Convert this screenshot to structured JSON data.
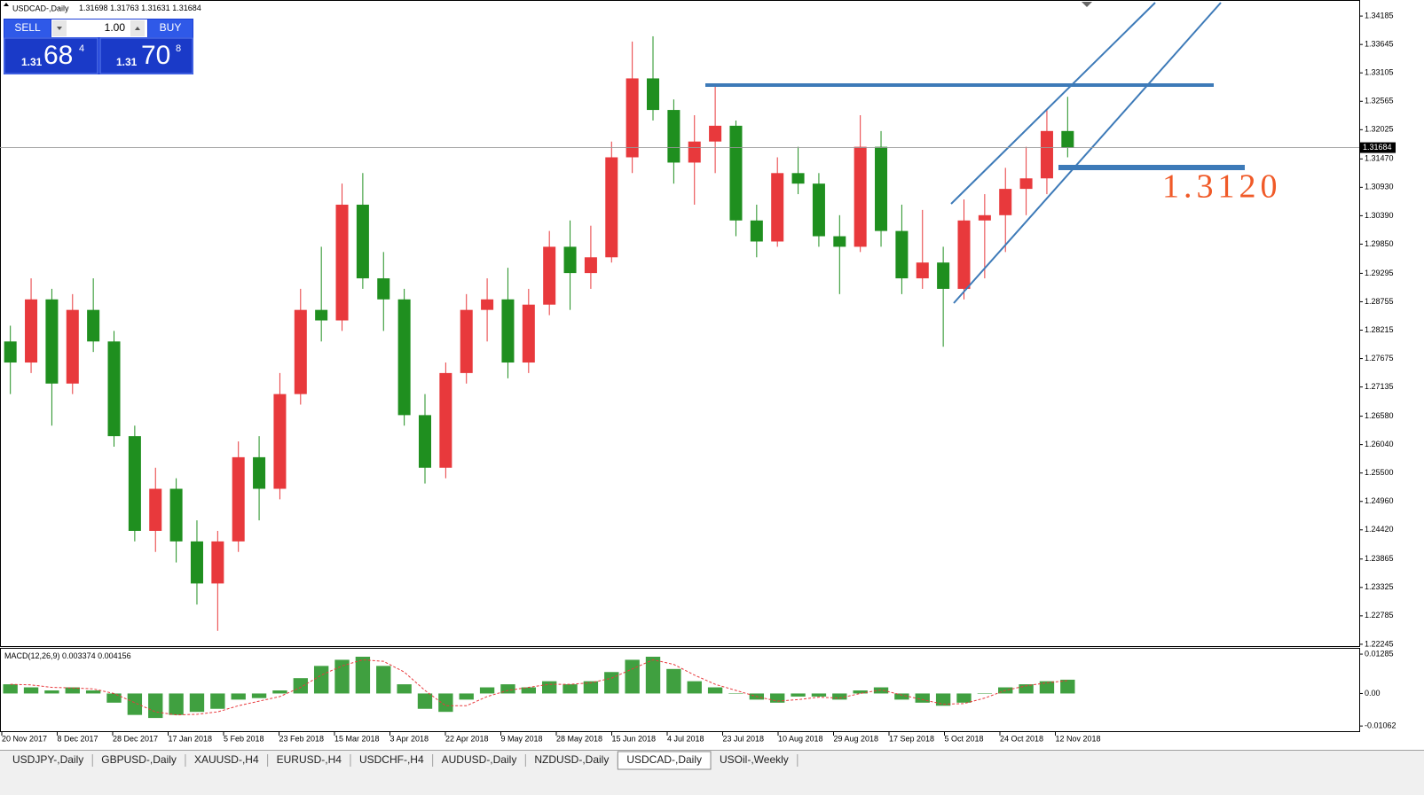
{
  "header": {
    "symbol": "USDCAD-,Daily",
    "quote": [
      1.31698,
      1.31763,
      1.31631,
      1.31684
    ]
  },
  "trade_panel": {
    "sell": "SELL",
    "buy": "BUY",
    "lots": "1.00",
    "sell_price": {
      "big": "1.31",
      "main": "68",
      "pip": "4"
    },
    "buy_price": {
      "big": "1.31",
      "main": "70",
      "pip": "8"
    }
  },
  "chart_data": [
    {
      "type": "candlestick",
      "up_color": "#e8393c",
      "down_color": "#1f8f1f",
      "open": [
        1.28,
        1.276,
        1.288,
        1.272,
        1.286,
        1.28,
        1.262,
        1.244,
        1.252,
        1.242,
        1.234,
        1.242,
        1.258,
        1.252,
        1.27,
        1.286,
        1.284,
        1.306,
        1.292,
        1.288,
        1.266,
        1.256,
        1.274,
        1.286,
        1.288,
        1.276,
        1.287,
        1.298,
        1.293,
        1.296,
        1.315,
        1.33,
        1.324,
        1.314,
        1.318,
        1.321,
        1.303,
        1.299,
        1.312,
        1.31,
        1.3,
        1.298,
        1.317,
        1.301,
        1.292,
        1.295,
        1.29,
        1.303,
        1.304,
        1.309,
        1.311,
        1.32
      ],
      "high": [
        1.283,
        1.292,
        1.29,
        1.289,
        1.292,
        1.282,
        1.264,
        1.256,
        1.254,
        1.246,
        1.244,
        1.261,
        1.262,
        1.274,
        1.29,
        1.298,
        1.31,
        1.312,
        1.297,
        1.29,
        1.27,
        1.276,
        1.289,
        1.292,
        1.294,
        1.29,
        1.301,
        1.303,
        1.302,
        1.318,
        1.337,
        1.338,
        1.326,
        1.323,
        1.329,
        1.322,
        1.306,
        1.315,
        1.317,
        1.312,
        1.304,
        1.323,
        1.32,
        1.306,
        1.305,
        1.298,
        1.307,
        1.308,
        1.313,
        1.317,
        1.324,
        1.3265
      ],
      "low": [
        1.27,
        1.274,
        1.264,
        1.27,
        1.278,
        1.26,
        1.242,
        1.24,
        1.238,
        1.23,
        1.225,
        1.24,
        1.246,
        1.25,
        1.268,
        1.28,
        1.282,
        1.29,
        1.282,
        1.264,
        1.253,
        1.254,
        1.272,
        1.28,
        1.273,
        1.274,
        1.285,
        1.286,
        1.29,
        1.295,
        1.312,
        1.322,
        1.31,
        1.306,
        1.312,
        1.3,
        1.296,
        1.298,
        1.308,
        1.298,
        1.289,
        1.297,
        1.298,
        1.289,
        1.29,
        1.279,
        1.288,
        1.292,
        1.297,
        1.304,
        1.308,
        1.315
      ],
      "close": [
        1.276,
        1.288,
        1.272,
        1.286,
        1.28,
        1.262,
        1.244,
        1.252,
        1.242,
        1.234,
        1.242,
        1.258,
        1.252,
        1.27,
        1.286,
        1.284,
        1.306,
        1.292,
        1.288,
        1.266,
        1.256,
        1.274,
        1.286,
        1.288,
        1.276,
        1.287,
        1.298,
        1.293,
        1.296,
        1.315,
        1.33,
        1.324,
        1.314,
        1.318,
        1.321,
        1.303,
        1.299,
        1.312,
        1.31,
        1.3,
        1.298,
        1.317,
        1.301,
        1.292,
        1.295,
        1.29,
        1.303,
        1.304,
        1.309,
        1.311,
        1.32,
        1.3168
      ],
      "current_price": 1.31684,
      "annotation": "1.3120",
      "ylim": [
        1.2221,
        1.3449
      ],
      "yticks": [
        1.34185,
        1.33645,
        1.33105,
        1.32565,
        1.32025,
        {
          "value": 1.3147,
          "label": "1.31470"
        },
        {
          "value": 1.3093,
          "label": "1.30930"
        },
        {
          "value": 1.3039,
          "label": "1.30390"
        },
        {
          "value": 1.2985,
          "label": "1.29850"
        },
        1.29295,
        1.28755,
        1.28215,
        1.27675,
        1.27135,
        {
          "value": 1.2658,
          "label": "1.26580"
        },
        {
          "value": 1.2604,
          "label": "1.26040"
        },
        {
          "value": 1.255,
          "label": "1.25500"
        },
        {
          "value": 1.2496,
          "label": "1.24960"
        },
        {
          "value": 1.2442,
          "label": "1.24420"
        },
        1.23865,
        1.23325,
        1.22785,
        1.22245
      ],
      "x_labels": [
        "20 Nov 2017",
        "8 Dec 2017",
        "28 Dec 2017",
        "17 Jan 2018",
        "5 Feb 2018",
        "23 Feb 2018",
        "15 Mar 2018",
        "3 Apr 2018",
        "22 Apr 2018",
        "9 May 2018",
        "28 May 2018",
        "15 Jun 2018",
        "4 Jul 2018",
        "23 Jul 2018",
        "10 Aug 2018",
        "29 Aug 2018",
        "17 Sep 2018",
        "5 Oct 2018",
        "24 Oct 2018",
        "12 Nov 2018"
      ]
    },
    {
      "type": "macd",
      "label": "MACD(12,26,9)",
      "main_value": 0.003374,
      "signal_value": 0.004156,
      "color": "#1f8f1f",
      "signal_color": "#e8393c",
      "histogram": [
        0.003,
        0.002,
        0.001,
        0.002,
        0.001,
        -0.003,
        -0.007,
        -0.008,
        -0.007,
        -0.006,
        -0.005,
        -0.002,
        -0.0015,
        0.001,
        0.005,
        0.009,
        0.011,
        0.012,
        0.009,
        0.003,
        -0.005,
        -0.006,
        -0.002,
        0.002,
        0.003,
        0.002,
        0.004,
        0.003,
        0.004,
        0.007,
        0.011,
        0.012,
        0.008,
        0.004,
        0.002,
        0.0,
        -0.002,
        -0.003,
        -0.001,
        -0.001,
        -0.002,
        0.001,
        0.002,
        -0.002,
        -0.003,
        -0.004,
        -0.003,
        0.0,
        0.002,
        0.003,
        0.004,
        0.0045
      ],
      "signal": [
        0.003,
        0.0028,
        0.002,
        0.0018,
        0.0015,
        0.0,
        -0.003,
        -0.006,
        -0.007,
        -0.0068,
        -0.006,
        -0.004,
        -0.0025,
        -0.001,
        0.002,
        0.006,
        0.009,
        0.011,
        0.0105,
        0.007,
        0.001,
        -0.004,
        -0.004,
        -0.001,
        0.001,
        0.002,
        0.003,
        0.003,
        0.0035,
        0.005,
        0.008,
        0.011,
        0.0095,
        0.006,
        0.003,
        0.001,
        -0.001,
        -0.0025,
        -0.002,
        -0.0012,
        -0.0015,
        0.0,
        0.0012,
        -0.0005,
        -0.002,
        -0.0035,
        -0.0033,
        -0.0015,
        0.001,
        0.0025,
        0.0035,
        0.0042
      ],
      "ylim": [
        -0.0126,
        0.0146
      ],
      "yticks": [
        0.01285,
        {
          "value": 0,
          "label": "0.00"
        },
        -0.01062
      ]
    }
  ],
  "tabs": [
    "USDJPY-,Daily",
    "GBPUSD-,Daily",
    "XAUUSD-,H4",
    "EURUSD-,H4",
    "USDCHF-,H4",
    "AUDUSD-,Daily",
    "NZDUSD-,Daily",
    "USDCAD-,Daily",
    "USOil-,Weekly"
  ],
  "active_tab": 7
}
